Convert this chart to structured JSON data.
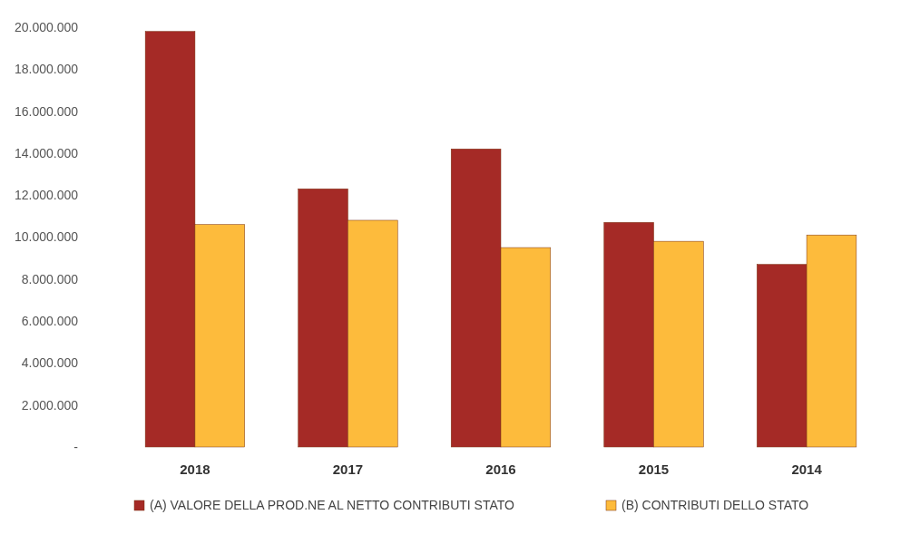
{
  "chart_data": {
    "type": "bar",
    "categories": [
      "2018",
      "2017",
      "2016",
      "2015",
      "2014"
    ],
    "series": [
      {
        "name": "(A) VALORE DELLA PROD.NE AL NETTO CONTRIBUTI STATO",
        "color": "#a52a26",
        "values": [
          19800000,
          12300000,
          14200000,
          10700000,
          8700000
        ]
      },
      {
        "name": "(B) CONTRIBUTI DELLO STATO",
        "color": "#fdbb3c",
        "values": [
          10600000,
          10800000,
          9500000,
          9800000,
          10100000
        ]
      }
    ],
    "ylim": [
      0,
      20000000
    ],
    "yticks": [
      {
        "value": 0,
        "label": "-"
      },
      {
        "value": 2000000,
        "label": "2.000.000"
      },
      {
        "value": 4000000,
        "label": "4.000.000"
      },
      {
        "value": 6000000,
        "label": "6.000.000"
      },
      {
        "value": 8000000,
        "label": "8.000.000"
      },
      {
        "value": 10000000,
        "label": "10.000.000"
      },
      {
        "value": 12000000,
        "label": "12.000.000"
      },
      {
        "value": 14000000,
        "label": "14.000.000"
      },
      {
        "value": 16000000,
        "label": "16.000.000"
      },
      {
        "value": 18000000,
        "label": "18.000.000"
      },
      {
        "value": 20000000,
        "label": "20.000.000"
      }
    ],
    "legend": "bottom"
  }
}
